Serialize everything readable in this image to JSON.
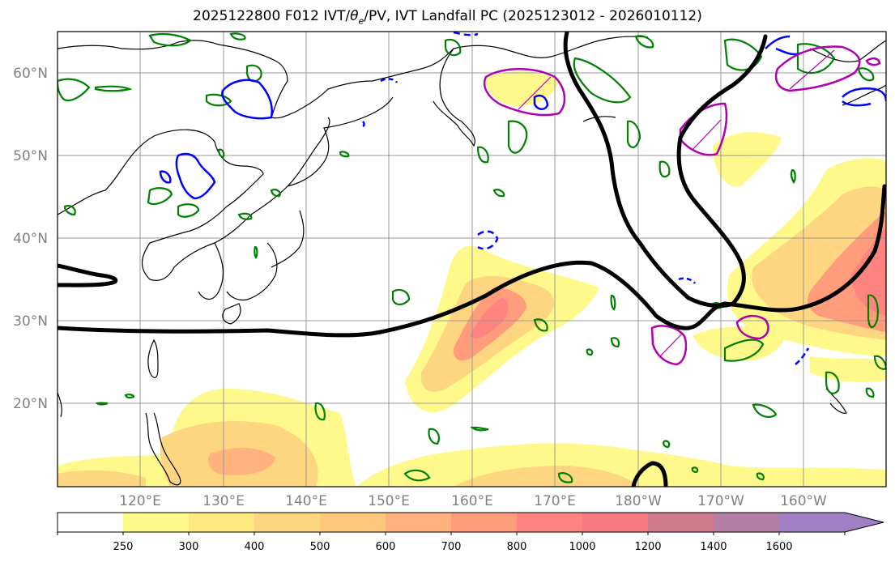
{
  "title": {
    "prefix": "2025122800 F012 IVT/",
    "theta": "θ",
    "theta_sub": "e",
    "suffix": "/PV, IVT Landfall PC (2025123012 - 2026010112)"
  },
  "axes": {
    "lon_ticks": [
      "120°E",
      "130°E",
      "140°E",
      "150°E",
      "160°E",
      "170°E",
      "180°W",
      "170°W",
      "160°W"
    ],
    "lat_ticks": [
      "20°N",
      "30°N",
      "40°N",
      "50°N",
      "60°N"
    ]
  },
  "colorbar": {
    "levels": [
      "250",
      "300",
      "400",
      "500",
      "600",
      "700",
      "800",
      "1000",
      "1200",
      "1400",
      "1600"
    ],
    "colors": [
      "#ffffff",
      "#fff98c",
      "#fee97f",
      "#fed580",
      "#fec77e",
      "#ffb27c",
      "#ff9c7c",
      "#ff8480",
      "#f77a82",
      "#d0798c",
      "#b37ea6",
      "#a07fc4"
    ]
  },
  "colors": {
    "ivt_low": "#fff98c",
    "ivt_mid": "#fed580",
    "ivt_high": "#ff8f7a",
    "pc_contour": "#000000",
    "theta_e_contour": "#008000",
    "pv_contour": "#0000ff",
    "landfall_box": "#b000b0"
  }
}
